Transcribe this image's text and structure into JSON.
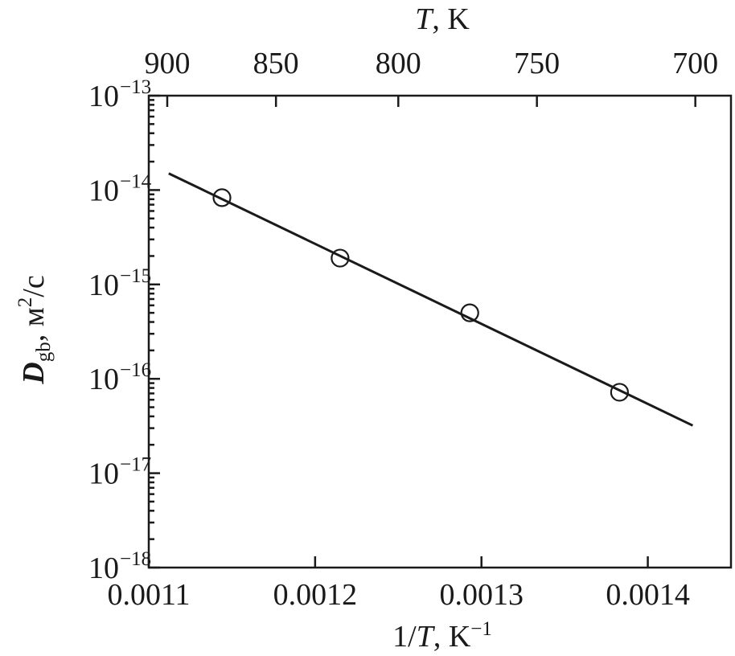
{
  "chart_data": {
    "type": "scatter",
    "y_scale": "log",
    "x": [
      0.001144,
      0.001215,
      0.001293,
      0.001383
    ],
    "y": [
      8.3e-15,
      1.9e-15,
      5e-16,
      7.2e-17
    ],
    "fit_line": {
      "x": [
        0.001112,
        0.001427
      ],
      "y": [
        1.5e-14,
        3.2e-17
      ]
    },
    "xlim": [
      0.0011,
      0.00145
    ],
    "ylim": [
      1e-18,
      1e-13
    ],
    "x_ticks": [
      0.0011,
      0.0012,
      0.0013,
      0.0014
    ],
    "x_tick_labels": [
      "0.0011",
      "0.0012",
      "0.0013",
      "0.0014"
    ],
    "y_ticks": [
      1e-13,
      1e-14,
      1e-15,
      1e-16,
      1e-17,
      1e-18
    ],
    "y_tick_labels": [
      {
        "base": "10",
        "exp": "−13"
      },
      {
        "base": "10",
        "exp": "−14"
      },
      {
        "base": "10",
        "exp": "−15"
      },
      {
        "base": "10",
        "exp": "−16"
      },
      {
        "base": "10",
        "exp": "−17"
      },
      {
        "base": "10",
        "exp": "−18"
      }
    ],
    "top_axis": {
      "ticks": [
        900,
        850,
        800,
        750,
        700
      ],
      "tick_labels": [
        "900",
        "850",
        "800",
        "750",
        "700"
      ],
      "label": {
        "var": "T",
        "rest": ", K"
      }
    },
    "xlabel": {
      "pre": "1/",
      "var": "T",
      "rest": ", K",
      "sup": "−1"
    },
    "ylabel": {
      "var": "D",
      "sub": "gb",
      "rest1": ", м",
      "sup": "2",
      "rest2": "/c"
    },
    "grid": false,
    "legend": "none"
  }
}
